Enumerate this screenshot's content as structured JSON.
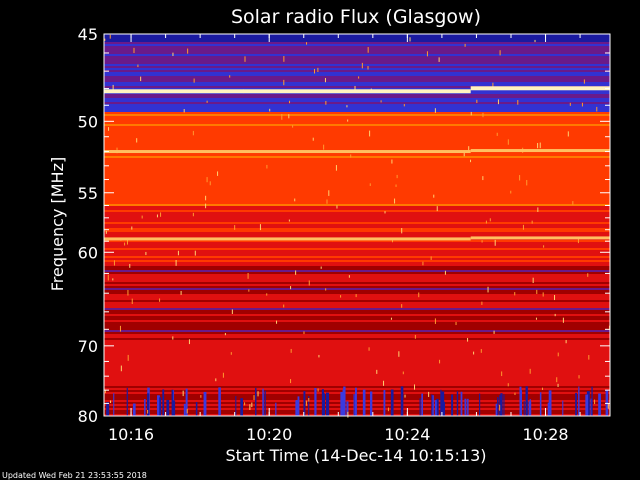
{
  "chart_data": {
    "type": "heatmap",
    "title": "Solar radio Flux (Glasgow)",
    "xlabel": "Start Time (14-Dec-14 10:15:13)",
    "ylabel": "Frequency [MHz]",
    "footer": "Updated Wed Feb 21 23:53:55 2018",
    "x_ticks": [
      "10:16",
      "10:20",
      "10:24",
      "10:28"
    ],
    "y_ticks": [
      "45",
      "50",
      "55",
      "60",
      "70",
      "80"
    ],
    "y_scale": "reciprocal",
    "y_range_mhz": [
      45,
      80
    ],
    "colormap": [
      "#000033",
      "#1a1aa0",
      "#3232d2",
      "#6a1a8a",
      "#a00000",
      "#e01010",
      "#ff3a00",
      "#ff7a00",
      "#ffd070",
      "#fff8d0"
    ],
    "features": [
      {
        "type": "band",
        "freq_mhz": 48.1,
        "intensity": "very bright"
      },
      {
        "type": "band",
        "freq_mhz": 58.8,
        "intensity": "bright"
      },
      {
        "type": "band",
        "freq_mhz": 52.0,
        "intensity": "bright"
      },
      {
        "type": "step_change",
        "time": "10:25:50"
      }
    ]
  }
}
